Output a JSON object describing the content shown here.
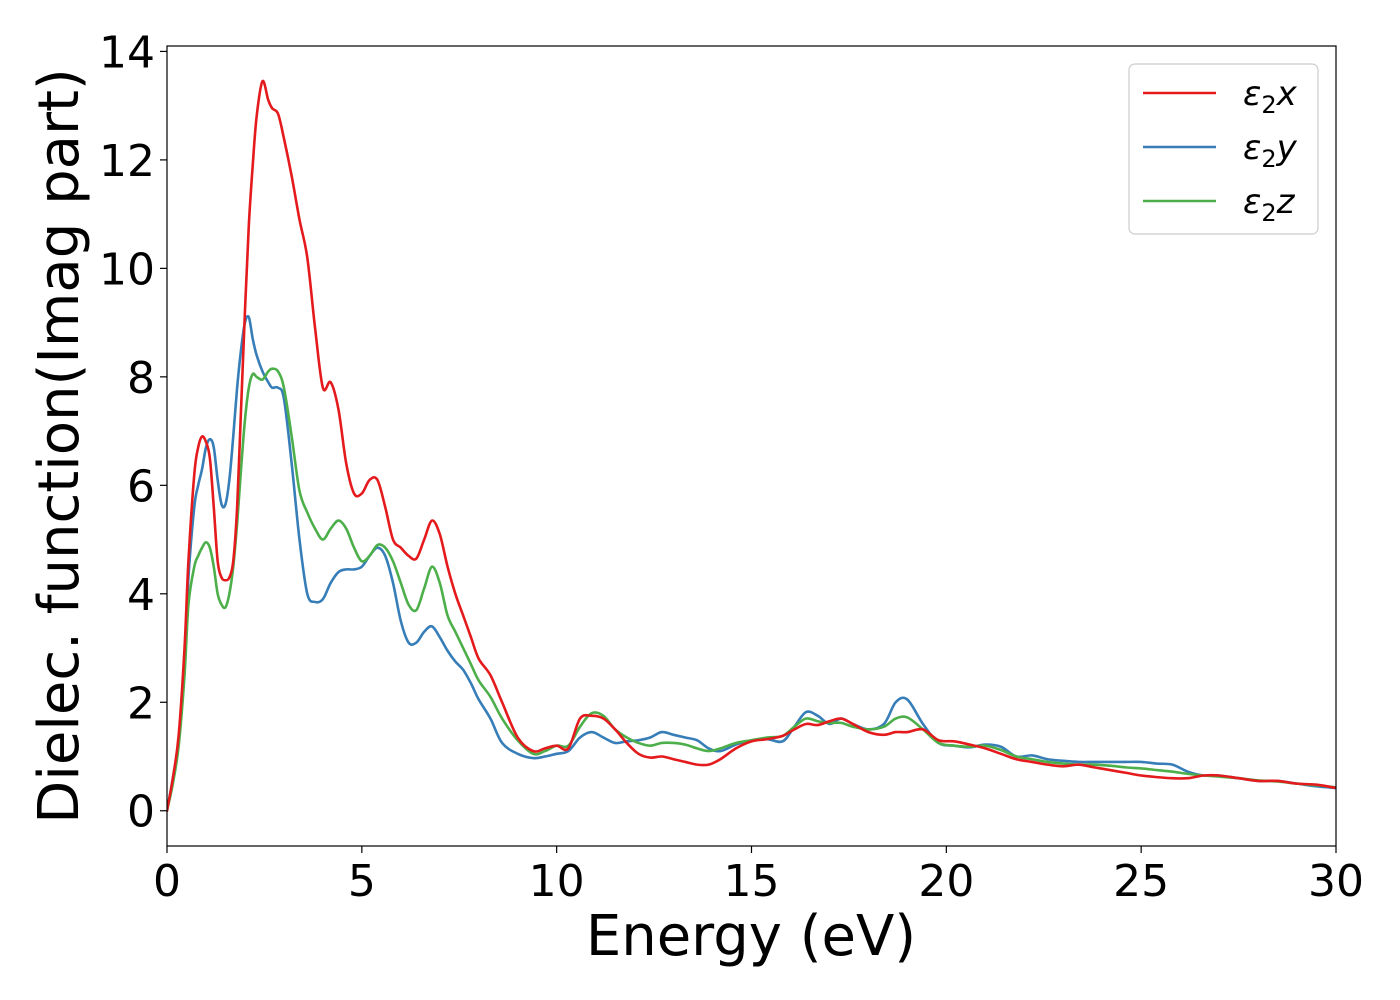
{
  "chart_data": {
    "type": "line",
    "title": "",
    "xlabel": "Energy (eV)",
    "ylabel": "Dielec. function(Imag part)",
    "xlim": [
      0,
      30
    ],
    "ylim": [
      -0.65,
      14.1
    ],
    "xticks": [
      0,
      5,
      10,
      15,
      20,
      25,
      30
    ],
    "yticks": [
      0,
      2,
      4,
      6,
      8,
      10,
      12,
      14
    ],
    "grid": false,
    "legend_position": "top-right",
    "series": [
      {
        "name": "ε₂x",
        "legend_base": "ε",
        "legend_sub": "2",
        "legend_suffix": "x",
        "color": "#e41a1c",
        "x": [
          0,
          0.15,
          0.3,
          0.45,
          0.55,
          0.7,
          0.8,
          0.9,
          1.0,
          1.1,
          1.2,
          1.3,
          1.4,
          1.5,
          1.6,
          1.7,
          1.8,
          1.9,
          2.0,
          2.1,
          2.2,
          2.3,
          2.45,
          2.6,
          2.7,
          2.85,
          3.0,
          3.2,
          3.4,
          3.6,
          3.8,
          4.0,
          4.2,
          4.4,
          4.6,
          4.8,
          5.0,
          5.2,
          5.4,
          5.6,
          5.8,
          6.0,
          6.2,
          6.4,
          6.6,
          6.8,
          7.0,
          7.2,
          7.4,
          7.6,
          7.8,
          8.0,
          8.3,
          8.6,
          9.0,
          9.4,
          9.7,
          10.0,
          10.3,
          10.6,
          10.9,
          11.2,
          11.5,
          11.8,
          12.1,
          12.4,
          12.7,
          13.0,
          13.3,
          13.6,
          13.9,
          14.2,
          14.6,
          15.0,
          15.4,
          15.8,
          16.1,
          16.4,
          16.7,
          17.0,
          17.3,
          17.6,
          18.0,
          18.4,
          18.7,
          19.0,
          19.4,
          19.8,
          20.2,
          20.6,
          21.0,
          21.4,
          21.8,
          22.2,
          22.6,
          23.0,
          23.4,
          23.8,
          24.2,
          24.6,
          25.0,
          25.4,
          25.8,
          26.2,
          26.6,
          27.0,
          27.5,
          28.0,
          28.5,
          29.0,
          29.5,
          30.0
        ],
        "y": [
          0,
          0.6,
          1.4,
          3.0,
          4.6,
          6.2,
          6.7,
          6.9,
          6.8,
          6.5,
          5.6,
          4.6,
          4.3,
          4.25,
          4.3,
          4.6,
          5.6,
          7.4,
          9.2,
          10.8,
          11.9,
          12.8,
          13.45,
          13.1,
          12.95,
          12.85,
          12.4,
          11.7,
          10.9,
          10.2,
          8.9,
          7.8,
          7.9,
          7.4,
          6.4,
          5.85,
          5.85,
          6.1,
          6.1,
          5.6,
          5.0,
          4.85,
          4.7,
          4.65,
          5.0,
          5.35,
          5.1,
          4.5,
          4.0,
          3.6,
          3.2,
          2.8,
          2.5,
          2.0,
          1.35,
          1.1,
          1.15,
          1.2,
          1.15,
          1.7,
          1.75,
          1.7,
          1.5,
          1.25,
          1.05,
          0.98,
          1.0,
          0.95,
          0.9,
          0.85,
          0.85,
          0.95,
          1.15,
          1.28,
          1.32,
          1.38,
          1.5,
          1.6,
          1.58,
          1.65,
          1.7,
          1.6,
          1.45,
          1.4,
          1.45,
          1.45,
          1.5,
          1.3,
          1.28,
          1.22,
          1.15,
          1.05,
          0.95,
          0.9,
          0.85,
          0.82,
          0.85,
          0.8,
          0.75,
          0.7,
          0.65,
          0.62,
          0.6,
          0.6,
          0.65,
          0.65,
          0.6,
          0.55,
          0.55,
          0.5,
          0.48,
          0.42
        ]
      },
      {
        "name": "ε₂y",
        "legend_base": "ε",
        "legend_sub": "2",
        "legend_suffix": "y",
        "color": "#377eb8",
        "x": [
          0,
          0.15,
          0.3,
          0.45,
          0.55,
          0.7,
          0.8,
          0.9,
          1.0,
          1.1,
          1.2,
          1.3,
          1.4,
          1.5,
          1.6,
          1.7,
          1.8,
          1.9,
          2.0,
          2.1,
          2.2,
          2.3,
          2.45,
          2.6,
          2.7,
          2.85,
          3.0,
          3.2,
          3.4,
          3.6,
          3.8,
          4.0,
          4.2,
          4.4,
          4.6,
          4.8,
          5.0,
          5.2,
          5.4,
          5.6,
          5.8,
          6.0,
          6.2,
          6.4,
          6.6,
          6.8,
          7.0,
          7.2,
          7.4,
          7.6,
          7.8,
          8.0,
          8.3,
          8.6,
          9.0,
          9.4,
          9.7,
          10.0,
          10.3,
          10.6,
          10.9,
          11.2,
          11.5,
          11.8,
          12.1,
          12.4,
          12.7,
          13.0,
          13.3,
          13.6,
          13.9,
          14.2,
          14.6,
          15.0,
          15.4,
          15.8,
          16.1,
          16.4,
          16.7,
          17.0,
          17.3,
          17.6,
          18.0,
          18.4,
          18.7,
          19.0,
          19.4,
          19.8,
          20.2,
          20.6,
          21.0,
          21.4,
          21.8,
          22.2,
          22.6,
          23.0,
          23.4,
          23.8,
          24.2,
          24.6,
          25.0,
          25.4,
          25.8,
          26.2,
          26.6,
          27.0,
          27.5,
          28.0,
          28.5,
          29.0,
          29.5,
          30.0
        ],
        "y": [
          0,
          0.6,
          1.3,
          2.8,
          4.3,
          5.6,
          6.0,
          6.3,
          6.7,
          6.85,
          6.7,
          6.1,
          5.65,
          5.65,
          6.1,
          6.9,
          7.8,
          8.5,
          9.0,
          9.1,
          8.7,
          8.4,
          8.1,
          7.9,
          7.8,
          7.8,
          7.6,
          6.4,
          5.0,
          4.0,
          3.85,
          3.9,
          4.2,
          4.4,
          4.45,
          4.45,
          4.5,
          4.7,
          4.85,
          4.7,
          4.2,
          3.5,
          3.1,
          3.1,
          3.3,
          3.4,
          3.2,
          2.95,
          2.75,
          2.6,
          2.35,
          2.05,
          1.7,
          1.25,
          1.05,
          0.97,
          1.0,
          1.05,
          1.1,
          1.35,
          1.45,
          1.35,
          1.25,
          1.28,
          1.3,
          1.35,
          1.45,
          1.4,
          1.35,
          1.3,
          1.15,
          1.1,
          1.22,
          1.3,
          1.32,
          1.28,
          1.55,
          1.82,
          1.75,
          1.6,
          1.7,
          1.6,
          1.5,
          1.6,
          2.0,
          2.05,
          1.6,
          1.25,
          1.2,
          1.17,
          1.22,
          1.18,
          1.0,
          1.02,
          0.95,
          0.92,
          0.9,
          0.9,
          0.9,
          0.9,
          0.9,
          0.87,
          0.85,
          0.72,
          0.65,
          0.65,
          0.6,
          0.55,
          0.55,
          0.5,
          0.45,
          0.42
        ]
      },
      {
        "name": "ε₂z",
        "legend_base": "ε",
        "legend_sub": "2",
        "legend_suffix": "z",
        "color": "#4daf4a",
        "x": [
          0,
          0.15,
          0.3,
          0.45,
          0.55,
          0.7,
          0.8,
          0.9,
          1.0,
          1.1,
          1.2,
          1.3,
          1.4,
          1.5,
          1.6,
          1.7,
          1.8,
          1.9,
          2.0,
          2.1,
          2.2,
          2.3,
          2.45,
          2.6,
          2.7,
          2.85,
          3.0,
          3.2,
          3.4,
          3.6,
          3.8,
          4.0,
          4.2,
          4.4,
          4.6,
          4.8,
          5.0,
          5.2,
          5.4,
          5.6,
          5.8,
          6.0,
          6.2,
          6.4,
          6.6,
          6.8,
          7.0,
          7.2,
          7.4,
          7.6,
          7.8,
          8.0,
          8.3,
          8.6,
          9.0,
          9.4,
          9.7,
          10.0,
          10.3,
          10.6,
          10.9,
          11.2,
          11.5,
          11.8,
          12.1,
          12.4,
          12.7,
          13.0,
          13.3,
          13.6,
          13.9,
          14.2,
          14.6,
          15.0,
          15.4,
          15.8,
          16.1,
          16.4,
          16.7,
          17.0,
          17.3,
          17.6,
          18.0,
          18.4,
          18.7,
          19.0,
          19.4,
          19.8,
          20.2,
          20.6,
          21.0,
          21.4,
          21.8,
          22.2,
          22.6,
          23.0,
          23.4,
          23.8,
          24.2,
          24.6,
          25.0,
          25.4,
          25.8,
          26.2,
          26.6,
          27.0,
          27.5,
          28.0,
          28.5,
          29.0,
          29.5,
          30.0
        ],
        "y": [
          0,
          0.5,
          1.2,
          2.5,
          3.8,
          4.5,
          4.7,
          4.85,
          4.95,
          4.85,
          4.5,
          4.0,
          3.8,
          3.75,
          4.0,
          4.5,
          5.3,
          6.3,
          7.2,
          7.8,
          8.05,
          8.0,
          7.95,
          8.1,
          8.15,
          8.1,
          7.8,
          6.9,
          5.9,
          5.5,
          5.2,
          5.0,
          5.2,
          5.35,
          5.2,
          4.85,
          4.6,
          4.7,
          4.9,
          4.85,
          4.6,
          4.2,
          3.8,
          3.7,
          4.1,
          4.5,
          4.2,
          3.6,
          3.3,
          3.0,
          2.7,
          2.4,
          2.1,
          1.7,
          1.3,
          1.05,
          1.1,
          1.2,
          1.2,
          1.55,
          1.8,
          1.75,
          1.5,
          1.35,
          1.25,
          1.2,
          1.25,
          1.25,
          1.22,
          1.15,
          1.1,
          1.15,
          1.25,
          1.3,
          1.35,
          1.38,
          1.55,
          1.7,
          1.65,
          1.62,
          1.62,
          1.55,
          1.5,
          1.55,
          1.7,
          1.72,
          1.5,
          1.25,
          1.2,
          1.18,
          1.2,
          1.12,
          1.0,
          0.95,
          0.9,
          0.87,
          0.85,
          0.85,
          0.83,
          0.8,
          0.78,
          0.75,
          0.72,
          0.68,
          0.65,
          0.63,
          0.6,
          0.56,
          0.54,
          0.5,
          0.47,
          0.43
        ]
      }
    ]
  }
}
